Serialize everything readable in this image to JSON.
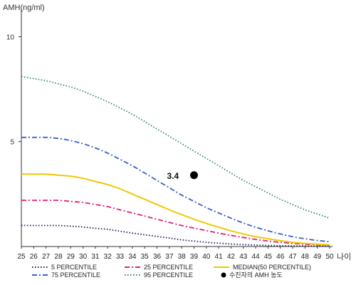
{
  "chart_data": {
    "type": "line",
    "ylabel": "AMH(ng/ml)",
    "xlabel": "나이",
    "x": [
      25,
      26,
      27,
      28,
      29,
      30,
      31,
      32,
      33,
      34,
      35,
      36,
      37,
      38,
      39,
      40,
      41,
      42,
      43,
      44,
      45,
      46,
      47,
      48,
      49,
      50
    ],
    "xlim": [
      25,
      50
    ],
    "ylim": [
      0,
      11
    ],
    "yticks": [
      5,
      10
    ],
    "grid": false,
    "legend_position": "bottom",
    "series": [
      {
        "name": "5 PERCENTILE",
        "color": "#1a1a5e",
        "dash": "dotted",
        "values": [
          1.0,
          1.0,
          1.0,
          1.0,
          0.97,
          0.93,
          0.87,
          0.82,
          0.73,
          0.64,
          0.56,
          0.48,
          0.4,
          0.32,
          0.26,
          0.2,
          0.16,
          0.12,
          0.09,
          0.07,
          0.05,
          0.04,
          0.03,
          0.03,
          0.02,
          0.02
        ]
      },
      {
        "name": "25 PERCENTILE",
        "color": "#e0207a",
        "dash": "dashdot",
        "values": [
          2.2,
          2.2,
          2.2,
          2.2,
          2.15,
          2.1,
          2.0,
          1.9,
          1.75,
          1.6,
          1.45,
          1.3,
          1.15,
          1.0,
          0.88,
          0.76,
          0.64,
          0.53,
          0.43,
          0.34,
          0.26,
          0.2,
          0.15,
          0.11,
          0.08,
          0.06
        ]
      },
      {
        "name": "MEDIAN(50 PERCENTILE)",
        "color": "#f0c800",
        "dash": "solid",
        "values": [
          3.45,
          3.45,
          3.45,
          3.4,
          3.35,
          3.25,
          3.1,
          2.95,
          2.75,
          2.5,
          2.25,
          2.0,
          1.75,
          1.52,
          1.3,
          1.1,
          0.92,
          0.75,
          0.6,
          0.47,
          0.37,
          0.28,
          0.2,
          0.15,
          0.11,
          0.08
        ]
      },
      {
        "name": "75 PERCENTILE",
        "color": "#3b5fc8",
        "dash": "dashdot",
        "values": [
          5.2,
          5.2,
          5.2,
          5.15,
          5.05,
          4.9,
          4.7,
          4.45,
          4.15,
          3.85,
          3.5,
          3.15,
          2.8,
          2.45,
          2.15,
          1.85,
          1.6,
          1.35,
          1.12,
          0.92,
          0.75,
          0.6,
          0.47,
          0.37,
          0.29,
          0.23
        ]
      },
      {
        "name": "95 PERCENTILE",
        "color": "#2e8b57",
        "dash": "dotted",
        "values": [
          8.1,
          8.0,
          7.9,
          7.75,
          7.6,
          7.4,
          7.15,
          6.9,
          6.6,
          6.3,
          5.95,
          5.6,
          5.25,
          4.9,
          4.55,
          4.2,
          3.85,
          3.5,
          3.15,
          2.85,
          2.55,
          2.25,
          2.0,
          1.75,
          1.55,
          1.35
        ]
      }
    ],
    "marker": {
      "name": "수진자의 AMH 농도",
      "x": 39,
      "y": 3.4,
      "label": "3.4",
      "color": "#000000"
    }
  }
}
